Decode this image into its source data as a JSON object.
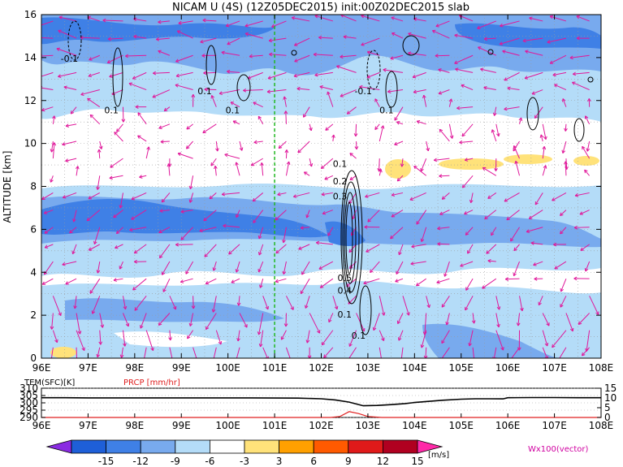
{
  "chart_data": [
    {
      "type": "heatmap",
      "title": "NICAM U (4S) (12Z05DEC2015) init:00Z02DEC2015 slab",
      "ylabel": "ALTITUDE [km]",
      "x_ticks": [
        "96E",
        "97E",
        "98E",
        "99E",
        "100E",
        "101E",
        "102E",
        "103E",
        "104E",
        "105E",
        "106E",
        "107E",
        "108E"
      ],
      "y_ticks": [
        "0",
        "2",
        "4",
        "6",
        "8",
        "10",
        "12",
        "14",
        "16"
      ],
      "xlim": [
        96,
        108
      ],
      "ylim": [
        0,
        16
      ],
      "grid": true,
      "marker_line_lon": 101,
      "contour_labels": [
        {
          "text": "-0.1",
          "lon": 96.6,
          "alt": 13.8
        },
        {
          "text": "0.1",
          "lon": 97.5,
          "alt": 11.4
        },
        {
          "text": "0.1",
          "lon": 99.5,
          "alt": 12.3
        },
        {
          "text": "0.1",
          "lon": 100.1,
          "alt": 11.4
        },
        {
          "text": "-0.1",
          "lon": 102.9,
          "alt": 12.3
        },
        {
          "text": "0.1",
          "lon": 103.4,
          "alt": 11.4
        },
        {
          "text": "0.1",
          "lon": 102.4,
          "alt": 8.9
        },
        {
          "text": "0.2",
          "lon": 102.4,
          "alt": 8.1
        },
        {
          "text": "0.3",
          "lon": 102.4,
          "alt": 7.4
        },
        {
          "text": "0.5",
          "lon": 102.5,
          "alt": 3.6
        },
        {
          "text": "0.4",
          "lon": 102.5,
          "alt": 3.0
        },
        {
          "text": "0.1",
          "lon": 102.5,
          "alt": 1.9
        },
        {
          "text": "0.1",
          "lon": 102.8,
          "alt": 0.9
        }
      ],
      "colorbar": {
        "ticks": [
          "-15",
          "-12",
          "-9",
          "-6",
          "-3",
          "3",
          "6",
          "9",
          "12",
          "15"
        ],
        "unit": "[m/s]",
        "colors": [
          "#8a2be2",
          "#1e5fd8",
          "#3f80e6",
          "#78aaee",
          "#b4dcf8",
          "#ffffff",
          "#ffe27a",
          "#ffa000",
          "#ff5a00",
          "#e01a1a",
          "#b00020",
          "#ff2aa8"
        ]
      },
      "vector_label": "Wx100(vector)",
      "colors": {
        "vector": "#e0189a",
        "marker_line": "#22b822"
      }
    },
    {
      "type": "line",
      "left_label": "TEM(SFC)[K]",
      "right_label": "PRCP [mm/hr]",
      "left_ticks": [
        "310",
        "305",
        "300",
        "295",
        "290"
      ],
      "right_ticks": [
        "15",
        "10",
        "5",
        "0"
      ],
      "x_ticks": [
        "96E",
        "97E",
        "98E",
        "99E",
        "100E",
        "101E",
        "102E",
        "103E",
        "104E",
        "105E",
        "106E",
        "107E",
        "108E"
      ],
      "xlim": [
        96,
        108
      ],
      "left_ylim": [
        290,
        310
      ],
      "right_ylim": [
        0,
        15
      ],
      "temperature": {
        "x": [
          96,
          96.5,
          97,
          97.5,
          98,
          98.5,
          99,
          99.5,
          100,
          100.5,
          101,
          101.5,
          102,
          102.3,
          102.6,
          102.9,
          103.2,
          103.5,
          103.8,
          104,
          104.3,
          104.6,
          105,
          105.3,
          105.6,
          105.9,
          106,
          106.5,
          107,
          107.5,
          108
        ],
        "y": [
          303.5,
          303.5,
          303.4,
          303.4,
          303.4,
          303.4,
          303.4,
          303.4,
          303.4,
          303.4,
          303.3,
          303.2,
          302.8,
          302,
          300.5,
          298,
          298.2,
          298.8,
          299.5,
          300.2,
          301,
          301.8,
          302.5,
          302.8,
          302.8,
          302.7,
          303.5,
          303.6,
          303.6,
          303.5,
          303.5
        ],
        "color": "#000000"
      },
      "precipitation": {
        "x": [
          96,
          102.2,
          102.4,
          102.6,
          102.8,
          103.0,
          103.3,
          108
        ],
        "y": [
          0,
          0,
          0.5,
          3.0,
          2.0,
          0.5,
          0,
          0
        ],
        "color": "#e02020"
      }
    }
  ]
}
